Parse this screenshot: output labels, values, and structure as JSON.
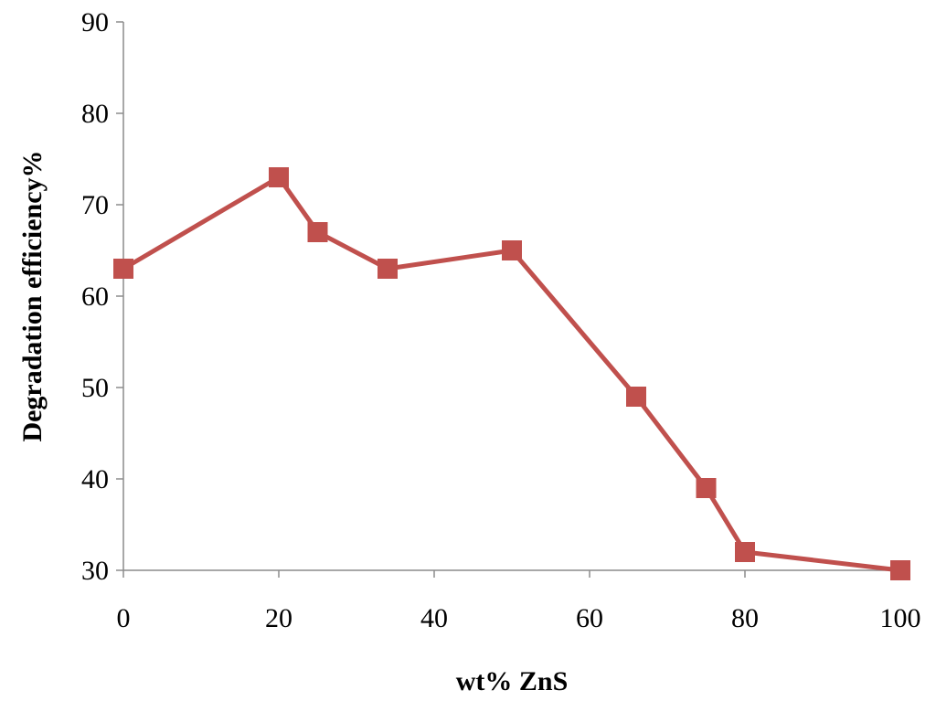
{
  "chart_data": {
    "type": "line",
    "title": "",
    "xlabel": "wt% ZnS",
    "ylabel": "Degradation efficiency%",
    "xlim": [
      0,
      100
    ],
    "ylim": [
      30,
      90
    ],
    "xticks": [
      0,
      20,
      40,
      60,
      80,
      100
    ],
    "yticks": [
      30,
      40,
      50,
      60,
      70,
      80,
      90
    ],
    "grid": false,
    "legend": "none",
    "series": [
      {
        "color": "#c0504d",
        "marker": "square",
        "x": [
          0,
          20,
          25,
          34,
          50,
          66,
          75,
          80,
          100
        ],
        "y": [
          63,
          73,
          67,
          63,
          65,
          49,
          39,
          32,
          30
        ]
      }
    ]
  }
}
